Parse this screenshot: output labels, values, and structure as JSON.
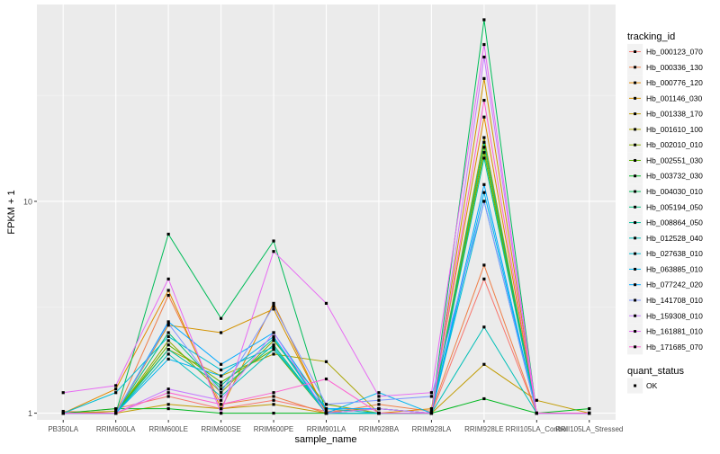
{
  "chart_data": {
    "type": "line",
    "xlabel": "sample_name",
    "ylabel": "FPKM + 1",
    "y_scale": "log10",
    "ylim": [
      0.93,
      85
    ],
    "y_ticks": [
      1,
      10
    ],
    "y_tick_labels": [
      "1",
      "10"
    ],
    "grid": true,
    "categories": [
      "PB350LA",
      "RRIM600LA",
      "RRIM600LE",
      "RRIM600SE",
      "RRIM600PE",
      "RRIM901LA",
      "RRIM928BA",
      "RRIM928LA",
      "RRIM928LE",
      "RRII105LA_Control",
      "RRII105LA_Stressed"
    ],
    "legend": {
      "position": "right",
      "color_title": "tracking_id",
      "shape_title": "quant_status",
      "shape_entries": [
        {
          "label": "OK",
          "marker": "square"
        }
      ]
    },
    "series": [
      {
        "name": "Hb_000123_070",
        "color": "#F8766D",
        "values": [
          1.0,
          1.05,
          1.2,
          1.05,
          1.15,
          1.02,
          1.05,
          1.0,
          4.3,
          1.0,
          1.0
        ]
      },
      {
        "name": "Hb_000336_130",
        "color": "#EF7F49",
        "values": [
          1.02,
          1.0,
          3.6,
          1.1,
          1.2,
          1.0,
          1.1,
          1.02,
          5.0,
          1.0,
          1.0
        ]
      },
      {
        "name": "Hb_000776_120",
        "color": "#E38900",
        "values": [
          1.0,
          1.3,
          3.8,
          1.05,
          3.3,
          1.0,
          1.0,
          1.05,
          25.0,
          1.0,
          1.0
        ]
      },
      {
        "name": "Hb_001146_030",
        "color": "#D39200",
        "values": [
          1.0,
          1.0,
          2.6,
          2.4,
          3.1,
          1.0,
          1.05,
          1.0,
          38.0,
          1.0,
          1.0
        ]
      },
      {
        "name": "Hb_001338_170",
        "color": "#C09B00",
        "values": [
          1.0,
          1.0,
          1.1,
          1.05,
          1.1,
          1.0,
          1.0,
          1.0,
          1.7,
          1.15,
          1.0
        ]
      },
      {
        "name": "Hb_001610_100",
        "color": "#A9A400",
        "values": [
          1.0,
          1.02,
          2.0,
          1.5,
          1.9,
          1.75,
          1.0,
          1.0,
          20.0,
          1.0,
          1.0
        ]
      },
      {
        "name": "Hb_002010_010",
        "color": "#8AAB00",
        "values": [
          1.0,
          1.0,
          2.2,
          1.25,
          2.2,
          1.1,
          1.0,
          1.0,
          18.0,
          1.0,
          1.0
        ]
      },
      {
        "name": "Hb_002551_030",
        "color": "#5EB300",
        "values": [
          1.0,
          1.0,
          2.1,
          1.4,
          2.0,
          1.0,
          1.05,
          1.0,
          17.0,
          1.0,
          1.0
        ]
      },
      {
        "name": "Hb_003732_030",
        "color": "#00B81F",
        "values": [
          1.0,
          1.05,
          1.05,
          1.0,
          1.0,
          1.0,
          1.0,
          1.0,
          1.17,
          1.0,
          1.05
        ]
      },
      {
        "name": "Hb_004030_010",
        "color": "#00BC59",
        "values": [
          1.0,
          1.0,
          7.0,
          2.8,
          6.5,
          1.0,
          1.0,
          1.0,
          72.0,
          1.0,
          1.0
        ]
      },
      {
        "name": "Hb_005194_050",
        "color": "#00BF7D",
        "values": [
          1.0,
          1.0,
          2.4,
          1.3,
          2.1,
          1.0,
          1.0,
          1.0,
          19.0,
          1.0,
          1.0
        ]
      },
      {
        "name": "Hb_008864_050",
        "color": "#00C09C",
        "values": [
          1.0,
          1.0,
          2.0,
          1.35,
          2.25,
          1.0,
          1.0,
          1.0,
          16.0,
          1.0,
          1.0
        ]
      },
      {
        "name": "Hb_012528_040",
        "color": "#00BFB8",
        "values": [
          1.0,
          1.0,
          1.9,
          1.2,
          2.0,
          1.05,
          1.0,
          1.0,
          2.55,
          1.0,
          1.0
        ]
      },
      {
        "name": "Hb_027638_010",
        "color": "#00BCD2",
        "values": [
          1.0,
          1.25,
          2.3,
          1.6,
          2.05,
          1.0,
          1.0,
          1.0,
          10.0,
          1.0,
          1.0
        ]
      },
      {
        "name": "Hb_063885_010",
        "color": "#00B4EF",
        "values": [
          1.0,
          1.0,
          1.8,
          1.5,
          2.3,
          1.0,
          1.25,
          1.0,
          11.0,
          1.0,
          1.0
        ]
      },
      {
        "name": "Hb_077242_020",
        "color": "#00A8FF",
        "values": [
          1.0,
          1.0,
          2.7,
          1.7,
          2.4,
          1.05,
          1.05,
          1.0,
          12.0,
          1.0,
          1.0
        ]
      },
      {
        "name": "Hb_141708_010",
        "color": "#7F96FF",
        "values": [
          1.0,
          1.0,
          2.65,
          1.25,
          3.2,
          1.1,
          1.15,
          1.2,
          10.0,
          1.0,
          1.0
        ]
      },
      {
        "name": "Hb_159308_010",
        "color": "#C77CFF",
        "values": [
          1.0,
          1.0,
          1.3,
          1.15,
          2.4,
          1.0,
          1.05,
          1.0,
          48.0,
          1.0,
          1.0
        ]
      },
      {
        "name": "Hb_161881_010",
        "color": "#E76BF3",
        "values": [
          1.25,
          1.35,
          4.3,
          1.0,
          5.8,
          3.3,
          1.2,
          1.25,
          55.0,
          1.0,
          1.0
        ]
      },
      {
        "name": "Hb_171685_070",
        "color": "#FD61D1",
        "values": [
          1.0,
          1.0,
          1.25,
          1.1,
          1.25,
          1.45,
          1.0,
          1.0,
          30.0,
          1.0,
          1.0
        ]
      }
    ]
  }
}
